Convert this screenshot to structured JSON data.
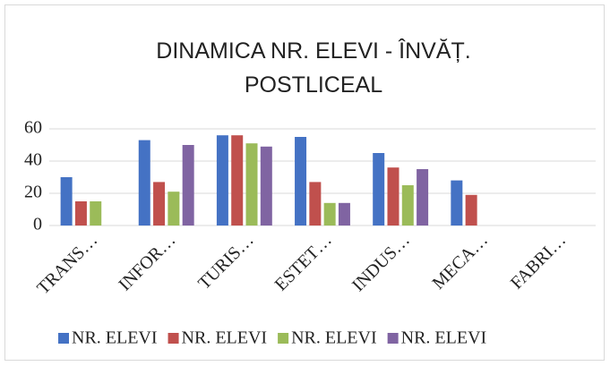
{
  "chart_data": {
    "type": "bar",
    "title": "DINAMICA NR. ELEVI - ÎNVĂȚ. POSTLICEAL",
    "categories": [
      "TRANS…",
      "INFOR…",
      "TURIS…",
      "ESTET…",
      "INDUS…",
      "MECA…",
      "FABRI…"
    ],
    "series": [
      {
        "name": "NR. ELEVI",
        "color": "#4472c4",
        "values": [
          30,
          53,
          56,
          55,
          45,
          28,
          null
        ]
      },
      {
        "name": "NR. ELEVI",
        "color": "#c0504d",
        "values": [
          15,
          27,
          56,
          27,
          36,
          19,
          null
        ]
      },
      {
        "name": "NR. ELEVI",
        "color": "#9bbb59",
        "values": [
          15,
          21,
          51,
          14,
          25,
          null,
          null
        ]
      },
      {
        "name": "NR. ELEVI",
        "color": "#8064a2",
        "values": [
          null,
          50,
          49,
          14,
          35,
          null,
          null
        ]
      }
    ],
    "ylim": [
      0,
      60
    ],
    "yticks": [
      0,
      20,
      40,
      60
    ],
    "grid": true,
    "legend": "bottom"
  }
}
